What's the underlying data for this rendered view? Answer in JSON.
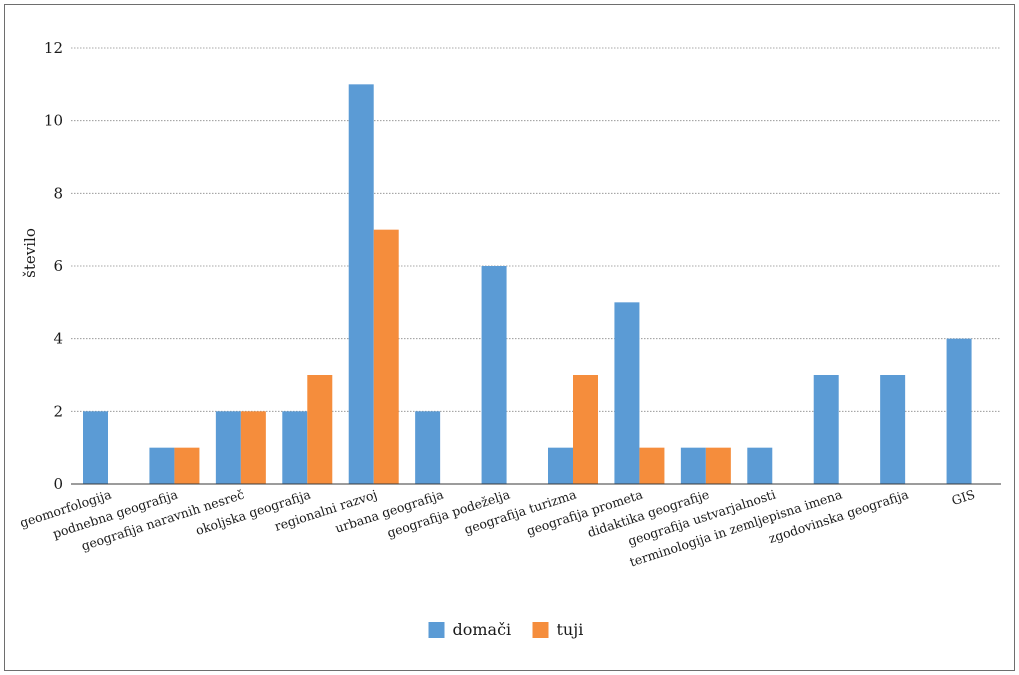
{
  "chart_data": {
    "type": "bar",
    "title": "",
    "xlabel": "",
    "ylabel": "število",
    "ylim": [
      0,
      12
    ],
    "yticks": [
      0,
      2,
      4,
      6,
      8,
      10,
      12
    ],
    "grid": true,
    "legend_position": "bottom-center",
    "categories": [
      "geomorfologija",
      "podnebna geografija",
      "geografija naravnih nesreč",
      "okoljska geografija",
      "regionalni razvoj",
      "urbana geografija",
      "geografija podeželja",
      "geografija turizma",
      "geografija prometa",
      "didaktika geografije",
      "geografija ustvarjalnosti",
      "terminologija in zemljepisna imena",
      "zgodovinska geografija",
      "GIS"
    ],
    "series": [
      {
        "name": "domači",
        "color": "#5b9bd5",
        "values": [
          2,
          1,
          2,
          2,
          11,
          2,
          6,
          1,
          5,
          1,
          1,
          3,
          3,
          4
        ]
      },
      {
        "name": "tuji",
        "color": "#f58d3c",
        "values": [
          0,
          1,
          2,
          3,
          7,
          0,
          0,
          3,
          1,
          1,
          0,
          0,
          0,
          0
        ]
      }
    ]
  }
}
